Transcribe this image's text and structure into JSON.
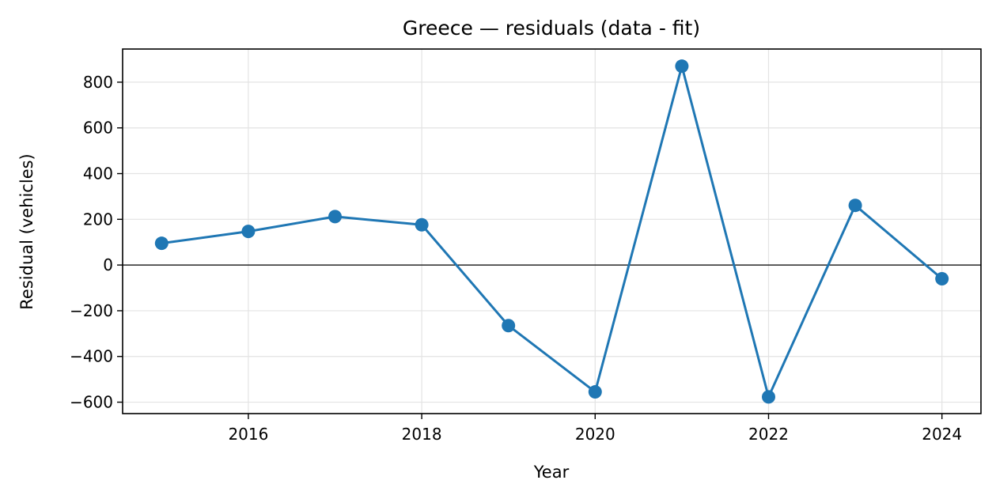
{
  "chart_data": {
    "type": "line",
    "title": "Greece — residuals (data - fit)",
    "xlabel": "Year",
    "ylabel": "Residual (vehicles)",
    "x": [
      2015,
      2016,
      2017,
      2018,
      2019,
      2020,
      2021,
      2022,
      2023,
      2024
    ],
    "series": [
      {
        "values": [
          95,
          147,
          212,
          176,
          -265,
          -555,
          870,
          -577,
          261,
          -60
        ],
        "color": "#1f77b4",
        "marker": "circle"
      }
    ],
    "xlim": [
      2014.55,
      2024.45
    ],
    "ylim": [
      -650,
      945
    ],
    "xticks": [
      2016,
      2018,
      2020,
      2022,
      2024
    ],
    "xtick_labels": [
      "2016",
      "2018",
      "2020",
      "2022",
      "2024"
    ],
    "yticks": [
      -600,
      -400,
      -200,
      0,
      200,
      400,
      600,
      800
    ],
    "ytick_labels": [
      "−600",
      "−400",
      "−200",
      "0",
      "200",
      "400",
      "600",
      "800"
    ],
    "zero_line": true,
    "grid": true
  }
}
